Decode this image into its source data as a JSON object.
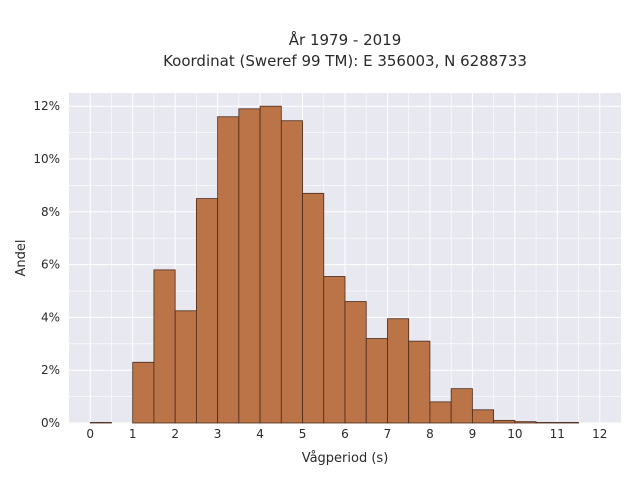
{
  "chart_data": {
    "type": "bar",
    "title": "År 1979 - 2019",
    "subtitle": "Koordinat (Sweref 99 TM): E 356003, N 6288733",
    "xlabel": "Vågperiod (s)",
    "ylabel": "Andel",
    "x_ticks": [
      "0",
      "1",
      "2",
      "3",
      "4",
      "5",
      "6",
      "7",
      "8",
      "9",
      "10",
      "11",
      "12"
    ],
    "y_ticks": [
      "0%",
      "2%",
      "4%",
      "6%",
      "8%",
      "10%",
      "12%"
    ],
    "xlim": [
      -0.5,
      12.5
    ],
    "ylim": [
      0,
      12.5
    ],
    "bin_width": 0.5,
    "bins": [
      {
        "x0": 0.0,
        "x1": 0.5,
        "value": 0.02
      },
      {
        "x0": 0.5,
        "x1": 1.0,
        "value": 0.0
      },
      {
        "x0": 1.0,
        "x1": 1.5,
        "value": 2.3
      },
      {
        "x0": 1.5,
        "x1": 2.0,
        "value": 5.8
      },
      {
        "x0": 2.0,
        "x1": 2.5,
        "value": 4.25
      },
      {
        "x0": 2.5,
        "x1": 3.0,
        "value": 8.5
      },
      {
        "x0": 3.0,
        "x1": 3.5,
        "value": 11.6
      },
      {
        "x0": 3.5,
        "x1": 4.0,
        "value": 11.9
      },
      {
        "x0": 4.0,
        "x1": 4.5,
        "value": 12.0
      },
      {
        "x0": 4.5,
        "x1": 5.0,
        "value": 11.45
      },
      {
        "x0": 5.0,
        "x1": 5.5,
        "value": 8.7
      },
      {
        "x0": 5.5,
        "x1": 6.0,
        "value": 5.55
      },
      {
        "x0": 6.0,
        "x1": 6.5,
        "value": 4.6
      },
      {
        "x0": 6.5,
        "x1": 7.0,
        "value": 3.2
      },
      {
        "x0": 7.0,
        "x1": 7.5,
        "value": 3.95
      },
      {
        "x0": 7.5,
        "x1": 8.0,
        "value": 3.1
      },
      {
        "x0": 8.0,
        "x1": 8.5,
        "value": 0.8
      },
      {
        "x0": 8.5,
        "x1": 9.0,
        "value": 1.3
      },
      {
        "x0": 9.0,
        "x1": 9.5,
        "value": 0.5
      },
      {
        "x0": 9.5,
        "x1": 10.0,
        "value": 0.1
      },
      {
        "x0": 10.0,
        "x1": 10.5,
        "value": 0.05
      },
      {
        "x0": 10.5,
        "x1": 11.0,
        "value": 0.02
      },
      {
        "x0": 11.0,
        "x1": 11.5,
        "value": 0.02
      },
      {
        "x0": 11.5,
        "x1": 12.0,
        "value": 0.0
      }
    ],
    "grid": true,
    "colors": {
      "bar_fill": "#bb7448",
      "bar_edge": "#4a2a1a",
      "plot_bg": "#e8e8f0",
      "grid": "#ffffff"
    }
  }
}
